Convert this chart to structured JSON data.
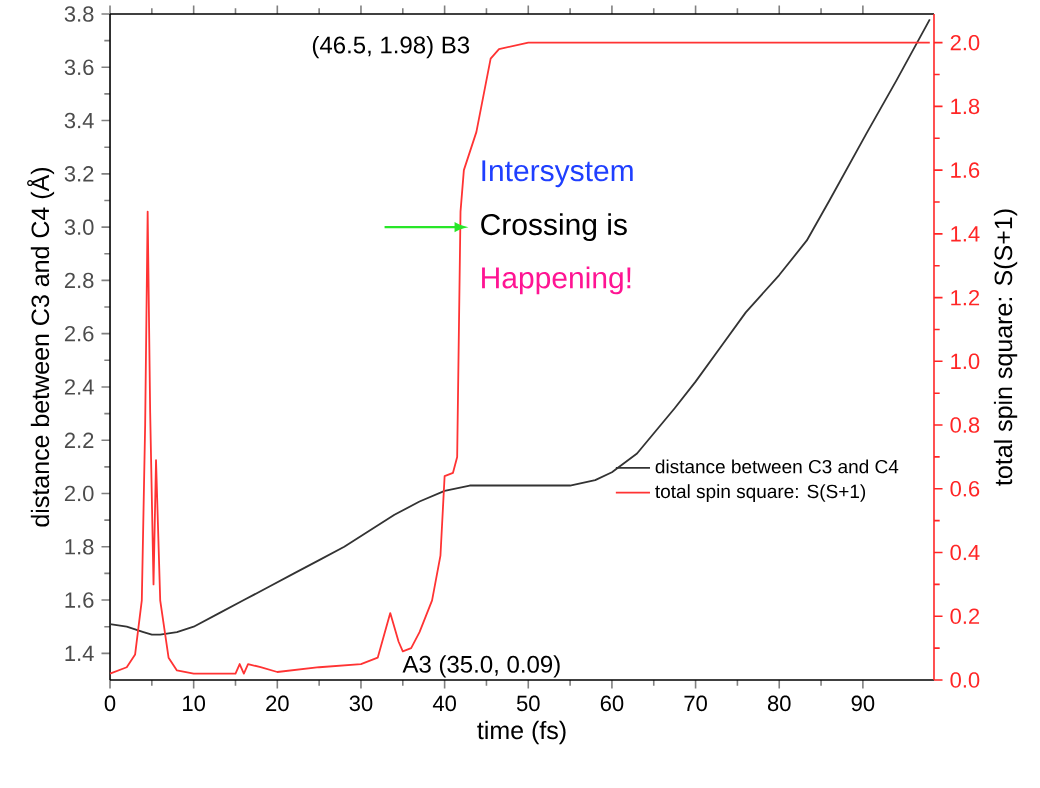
{
  "chart_data": {
    "type": "line",
    "xlabel": "time (fs)",
    "ylabel": "distance between C3 and C4 (Å)",
    "y2label": "total spin square: S(S+1)",
    "xlim": [
      0,
      98.5
    ],
    "xticks": [
      0,
      10,
      20,
      30,
      40,
      50,
      60,
      70,
      80,
      90
    ],
    "ylim": [
      1.3,
      3.8
    ],
    "yticks": [
      1.4,
      1.6,
      1.8,
      {
        "value": 2,
        "label": "2.0"
      },
      2.2,
      2.4,
      2.6,
      2.8,
      {
        "value": 3,
        "label": "3.0"
      },
      3.2,
      3.4,
      3.6,
      3.8
    ],
    "y2lim": [
      0,
      2.09
    ],
    "y2ticks": [
      {
        "value": 0,
        "label": "0.0"
      },
      0.2,
      0.4,
      0.6,
      0.8,
      {
        "value": 1,
        "label": "1.0"
      },
      1.2,
      1.4,
      1.6,
      1.8,
      {
        "value": 2,
        "label": "2.0"
      }
    ],
    "legend": "right",
    "grid": false,
    "series": [
      {
        "name": "distance between C3 and C4",
        "color": "#333333",
        "x": [
          0,
          2,
          4,
          5,
          6,
          8,
          10,
          13,
          16,
          19,
          22,
          25,
          28,
          31,
          34,
          37,
          40,
          43,
          46,
          50,
          55,
          58,
          60,
          63,
          67.5,
          70,
          73,
          76,
          80,
          83.3,
          86,
          90.4,
          94,
          98
        ],
        "values": [
          1.51,
          1.5,
          1.48,
          1.47,
          1.47,
          1.48,
          1.5,
          1.55,
          1.6,
          1.65,
          1.7,
          1.75,
          1.8,
          1.86,
          1.92,
          1.97,
          2.01,
          2.03,
          2.03,
          2.03,
          2.03,
          2.05,
          2.08,
          2.15,
          2.32,
          2.42,
          2.55,
          2.68,
          2.82,
          2.95,
          3.1,
          3.35,
          3.55,
          3.78
        ]
      },
      {
        "name": "total spin square: S(S+1)",
        "color": "#ff3333",
        "axis": "y2",
        "x": [
          0,
          2,
          3,
          3.8,
          4.2,
          4.5,
          4.8,
          5.2,
          5.5,
          6,
          7,
          8,
          10,
          15,
          15.5,
          16,
          16.5,
          18,
          20,
          25,
          30,
          32,
          33.5,
          34.5,
          35,
          36,
          37,
          38.5,
          39.5,
          40,
          41,
          41.5,
          41.9,
          42.3,
          43.8,
          45.5,
          46.5,
          50,
          98
        ],
        "values": [
          0.02,
          0.04,
          0.08,
          0.25,
          0.8,
          1.47,
          0.84,
          0.3,
          0.69,
          0.25,
          0.07,
          0.03,
          0.02,
          0.02,
          0.05,
          0.02,
          0.05,
          0.04,
          0.025,
          0.04,
          0.05,
          0.07,
          0.21,
          0.12,
          0.09,
          0.1,
          0.15,
          0.25,
          0.39,
          0.64,
          0.65,
          0.7,
          1.47,
          1.6,
          1.72,
          1.95,
          1.98,
          2.0,
          2.0
        ]
      }
    ],
    "annotations": [
      "(46.5, 1.98) B3",
      "A3 (35.0, 0.09)",
      "Intersystem",
      "Crossing is",
      "Happening!"
    ]
  }
}
